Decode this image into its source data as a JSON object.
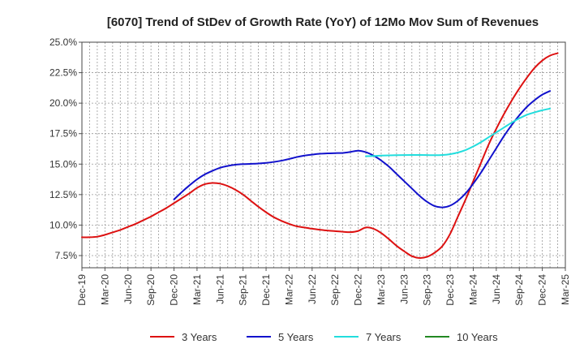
{
  "chart_data": {
    "type": "line",
    "title": "[6070]  Trend of StDev of Growth Rate (YoY) of 12Mo Mov Sum of Revenues",
    "xlabel": "",
    "ylabel": "",
    "grid": true,
    "ylim": [
      6.5,
      25.0
    ],
    "y_ticks": [
      7.5,
      10.0,
      12.5,
      15.0,
      17.5,
      20.0,
      22.5,
      25.0
    ],
    "y_tick_labels": [
      "7.5%",
      "10.0%",
      "12.5%",
      "15.0%",
      "17.5%",
      "20.0%",
      "22.5%",
      "25.0%"
    ],
    "x_tick_labels": [
      "Dec-19",
      "Mar-20",
      "Jun-20",
      "Sep-20",
      "Dec-20",
      "Mar-21",
      "Jun-21",
      "Sep-21",
      "Dec-21",
      "Mar-22",
      "Jun-22",
      "Sep-22",
      "Dec-22",
      "Mar-23",
      "Jun-23",
      "Sep-23",
      "Dec-23",
      "Mar-24",
      "Jun-24",
      "Sep-24",
      "Dec-24",
      "Mar-25"
    ],
    "x_range_months": [
      0,
      63
    ],
    "legend_position": "bottom",
    "series": [
      {
        "name": "3 Years",
        "color": "#dd1111",
        "points": [
          [
            0,
            9.0
          ],
          [
            1,
            9.0
          ],
          [
            2,
            9.05
          ],
          [
            3,
            9.2
          ],
          [
            4,
            9.4
          ],
          [
            5,
            9.6
          ],
          [
            6,
            9.85
          ],
          [
            7,
            10.1
          ],
          [
            8,
            10.4
          ],
          [
            9,
            10.7
          ],
          [
            10,
            11.05
          ],
          [
            11,
            11.4
          ],
          [
            12,
            11.8
          ],
          [
            13,
            12.2
          ],
          [
            14,
            12.6
          ],
          [
            15,
            13.05
          ],
          [
            16,
            13.35
          ],
          [
            17,
            13.45
          ],
          [
            18,
            13.4
          ],
          [
            19,
            13.2
          ],
          [
            20,
            12.9
          ],
          [
            21,
            12.5
          ],
          [
            22,
            12.0
          ],
          [
            23,
            11.5
          ],
          [
            24,
            11.05
          ],
          [
            25,
            10.65
          ],
          [
            26,
            10.35
          ],
          [
            27,
            10.1
          ],
          [
            28,
            9.9
          ],
          [
            29,
            9.8
          ],
          [
            30,
            9.7
          ],
          [
            31,
            9.62
          ],
          [
            32,
            9.55
          ],
          [
            33,
            9.5
          ],
          [
            34,
            9.45
          ],
          [
            35,
            9.42
          ],
          [
            36,
            9.52
          ],
          [
            37,
            9.8
          ],
          [
            38,
            9.7
          ],
          [
            39,
            9.35
          ],
          [
            40,
            8.85
          ],
          [
            41,
            8.3
          ],
          [
            42,
            7.85
          ],
          [
            43,
            7.45
          ],
          [
            44,
            7.3
          ],
          [
            45,
            7.4
          ],
          [
            46,
            7.75
          ],
          [
            47,
            8.3
          ],
          [
            48,
            9.3
          ],
          [
            49,
            10.7
          ],
          [
            50,
            12.1
          ],
          [
            51,
            13.6
          ],
          [
            52,
            15.1
          ],
          [
            53,
            16.6
          ],
          [
            54,
            17.9
          ],
          [
            55,
            19.1
          ],
          [
            56,
            20.2
          ],
          [
            57,
            21.2
          ],
          [
            58,
            22.1
          ],
          [
            59,
            22.9
          ],
          [
            60,
            23.5
          ],
          [
            61,
            23.9
          ],
          [
            62,
            24.1
          ]
        ]
      },
      {
        "name": "5 Years",
        "color": "#1111cc",
        "points": [
          [
            12,
            12.1
          ],
          [
            13,
            12.7
          ],
          [
            14,
            13.25
          ],
          [
            15,
            13.75
          ],
          [
            16,
            14.15
          ],
          [
            17,
            14.45
          ],
          [
            18,
            14.7
          ],
          [
            19,
            14.85
          ],
          [
            20,
            14.95
          ],
          [
            21,
            15.0
          ],
          [
            22,
            15.02
          ],
          [
            23,
            15.05
          ],
          [
            24,
            15.1
          ],
          [
            25,
            15.18
          ],
          [
            26,
            15.28
          ],
          [
            27,
            15.42
          ],
          [
            28,
            15.58
          ],
          [
            29,
            15.7
          ],
          [
            30,
            15.78
          ],
          [
            31,
            15.85
          ],
          [
            32,
            15.88
          ],
          [
            33,
            15.9
          ],
          [
            34,
            15.92
          ],
          [
            35,
            16.0
          ],
          [
            36,
            16.1
          ],
          [
            37,
            15.98
          ],
          [
            38,
            15.7
          ],
          [
            39,
            15.3
          ],
          [
            40,
            14.8
          ],
          [
            41,
            14.2
          ],
          [
            42,
            13.6
          ],
          [
            43,
            13.0
          ],
          [
            44,
            12.4
          ],
          [
            45,
            11.9
          ],
          [
            46,
            11.55
          ],
          [
            47,
            11.45
          ],
          [
            48,
            11.6
          ],
          [
            49,
            12.0
          ],
          [
            50,
            12.6
          ],
          [
            51,
            13.4
          ],
          [
            52,
            14.3
          ],
          [
            53,
            15.3
          ],
          [
            54,
            16.3
          ],
          [
            55,
            17.3
          ],
          [
            56,
            18.2
          ],
          [
            57,
            19.0
          ],
          [
            58,
            19.7
          ],
          [
            59,
            20.25
          ],
          [
            60,
            20.7
          ],
          [
            61,
            21.0
          ]
        ]
      },
      {
        "name": "7 Years",
        "color": "#22dddd",
        "points": [
          [
            37,
            15.65
          ],
          [
            38,
            15.67
          ],
          [
            39,
            15.7
          ],
          [
            40,
            15.72
          ],
          [
            41,
            15.73
          ],
          [
            42,
            15.74
          ],
          [
            43,
            15.75
          ],
          [
            44,
            15.75
          ],
          [
            45,
            15.74
          ],
          [
            46,
            15.73
          ],
          [
            47,
            15.75
          ],
          [
            48,
            15.82
          ],
          [
            49,
            15.95
          ],
          [
            50,
            16.15
          ],
          [
            51,
            16.45
          ],
          [
            52,
            16.8
          ],
          [
            53,
            17.2
          ],
          [
            54,
            17.6
          ],
          [
            55,
            18.0
          ],
          [
            56,
            18.4
          ],
          [
            57,
            18.75
          ],
          [
            58,
            19.05
          ],
          [
            59,
            19.25
          ],
          [
            60,
            19.42
          ],
          [
            61,
            19.55
          ]
        ]
      },
      {
        "name": "10 Years",
        "color": "#228822",
        "points": []
      }
    ]
  }
}
